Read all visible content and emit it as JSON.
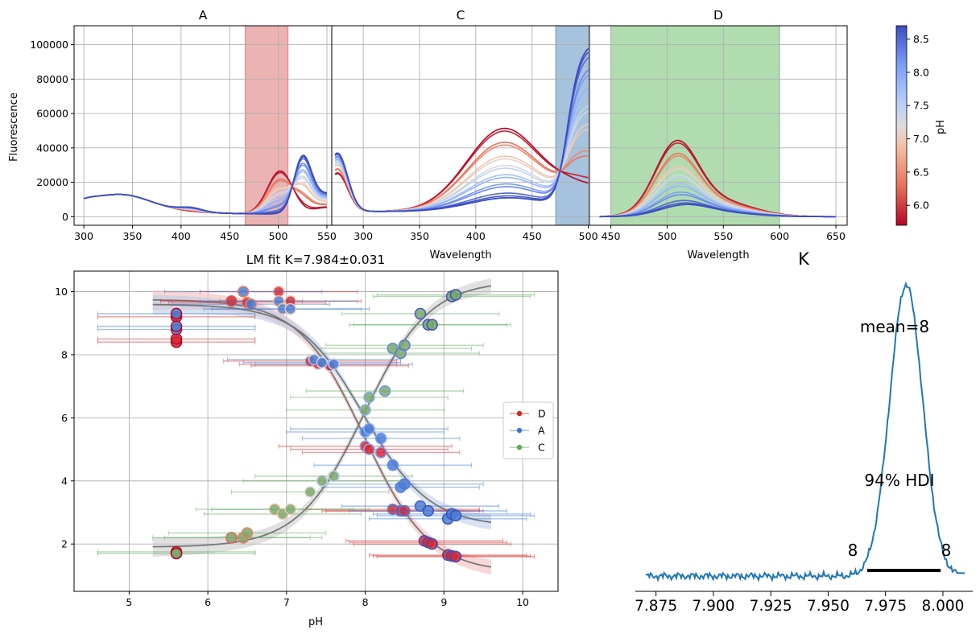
{
  "colors": {
    "band_A": "#e08080",
    "band_C": "#6f9cc7",
    "band_D": "#7cc47c",
    "series_D": "#d62728",
    "series_A": "#3a78cf",
    "series_C": "#5aa85a",
    "fit_line": "#777777",
    "kde_line": "#1f77b4",
    "hdi_line": "#000000"
  },
  "chart_data": [
    {
      "type": "line",
      "title": "A",
      "ylabel": "Fluorescence",
      "xlabel": "",
      "xlim": [
        290,
        555
      ],
      "ylim": [
        -5000,
        111000
      ],
      "xticks": [
        300,
        350,
        400,
        450,
        500,
        550
      ],
      "yticks": [
        0,
        20000,
        40000,
        60000,
        80000,
        100000
      ],
      "ytick_labels": [
        "0",
        "20000",
        "40000",
        "60000",
        "80000",
        "100000"
      ],
      "shaded_band": [
        466,
        510
      ],
      "series_pH": [
        5.7,
        6.3,
        6.9,
        7.3,
        7.7,
        8.1,
        8.5,
        8.7
      ]
    },
    {
      "type": "line",
      "title": "C",
      "xlabel": "Wavelength",
      "xlim": [
        272,
        501
      ],
      "ylim": [
        -5000,
        111000
      ],
      "xticks": [
        300,
        350,
        400,
        450,
        500
      ],
      "shaded_band": [
        471,
        500
      ],
      "series_pH": [
        5.7,
        6.3,
        6.9,
        7.3,
        7.7,
        8.1,
        8.5,
        8.7
      ]
    },
    {
      "type": "line",
      "title": "D",
      "xlabel": "Wavelength",
      "xlim": [
        431,
        660
      ],
      "ylim": [
        -5000,
        111000
      ],
      "xticks": [
        450,
        500,
        550,
        600,
        650
      ],
      "shaded_band": [
        450,
        600
      ],
      "series_pH": [
        5.7,
        6.3,
        6.9,
        7.3,
        7.7,
        8.1,
        8.5,
        8.7
      ]
    },
    {
      "type": "colorbar",
      "label": "pH",
      "range": [
        5.7,
        8.7
      ],
      "ticks": [
        6.0,
        6.5,
        7.0,
        7.5,
        8.0,
        8.5
      ],
      "tick_labels": [
        "6.0",
        "6.5",
        "7.0",
        "7.5",
        "8.0",
        "8.5"
      ]
    },
    {
      "type": "scatter",
      "title": "LM fit K=7.984±0.031",
      "xlabel": "pH",
      "xlim": [
        4.3,
        10.45
      ],
      "ylim": [
        0.5,
        10.65
      ],
      "xticks": [
        5,
        6,
        7,
        8,
        9,
        10
      ],
      "yticks": [
        2,
        4,
        6,
        8,
        10
      ],
      "legend_position": "center-right",
      "series": [
        {
          "name": "D",
          "x": [
            5.6,
            5.6,
            5.6,
            6.3,
            6.5,
            6.9,
            7.05,
            7.3,
            7.4,
            7.55,
            8.0,
            8.05,
            8.2,
            8.35,
            8.45,
            8.5,
            8.75,
            8.8,
            8.85,
            9.05,
            9.1,
            9.15
          ],
          "y": [
            8.4,
            8.5,
            9.2,
            9.7,
            9.65,
            10.0,
            9.7,
            7.8,
            7.7,
            7.65,
            5.1,
            5.0,
            4.9,
            3.1,
            3.05,
            3.05,
            2.1,
            2.05,
            2.0,
            1.65,
            1.62,
            1.6
          ],
          "xerr": [
            1.0,
            1.0,
            1.0,
            0.9,
            1.0,
            1.0,
            0.9,
            1.1,
            1.0,
            1.0,
            1.1,
            1.0,
            1.0,
            1.1,
            1.0,
            1.0,
            1.0,
            1.0,
            1.0,
            1.0,
            1.0,
            1.0
          ]
        },
        {
          "name": "A",
          "x": [
            5.6,
            5.6,
            5.6,
            6.45,
            6.55,
            6.9,
            6.95,
            7.05,
            7.35,
            7.45,
            7.6,
            8.0,
            8.05,
            8.2,
            8.35,
            8.45,
            8.5,
            8.7,
            8.8,
            9.05,
            9.1,
            9.15
          ],
          "y": [
            8.8,
            8.9,
            9.3,
            10.0,
            9.6,
            9.7,
            9.45,
            9.45,
            7.85,
            7.75,
            7.7,
            5.55,
            5.65,
            5.35,
            4.5,
            3.8,
            3.9,
            3.2,
            3.05,
            2.8,
            2.95,
            2.9
          ],
          "xerr": [
            1.0,
            1.0,
            1.0,
            1.0,
            1.0,
            1.0,
            1.0,
            1.0,
            1.1,
            1.0,
            1.0,
            1.0,
            1.0,
            1.0,
            1.0,
            1.0,
            1.0,
            1.0,
            1.0,
            1.0,
            1.0,
            1.0
          ]
        },
        {
          "name": "C",
          "x": [
            5.6,
            5.6,
            6.3,
            6.45,
            6.5,
            6.85,
            6.95,
            7.05,
            7.3,
            7.45,
            7.6,
            8.0,
            8.05,
            8.25,
            8.35,
            8.45,
            8.5,
            8.7,
            8.8,
            8.85,
            9.1,
            9.15
          ],
          "y": [
            1.75,
            1.7,
            2.2,
            2.2,
            2.35,
            3.1,
            2.95,
            3.1,
            3.65,
            4.0,
            4.15,
            6.25,
            6.65,
            6.85,
            8.2,
            8.05,
            8.3,
            9.3,
            8.95,
            8.95,
            9.85,
            9.9
          ],
          "xerr": [
            1.0,
            1.0,
            1.0,
            1.0,
            1.0,
            1.0,
            1.0,
            1.0,
            1.0,
            1.0,
            1.0,
            1.0,
            1.0,
            1.0,
            1.0,
            1.0,
            1.0,
            1.0,
            1.0,
            1.0,
            1.0,
            1.0
          ]
        }
      ],
      "fits": [
        {
          "name": "D",
          "x_range": [
            5.3,
            9.6
          ],
          "y_high": 9.75,
          "y_low": 1.1,
          "K": 7.984
        },
        {
          "name": "A",
          "x_range": [
            5.3,
            9.6
          ],
          "y_high": 9.6,
          "y_low": 2.55,
          "K": 7.984
        },
        {
          "name": "C",
          "x_range": [
            5.3,
            9.6
          ],
          "y_high": 1.9,
          "y_low": 10.35,
          "K": 7.984
        }
      ]
    },
    {
      "type": "line",
      "title": "K",
      "xlim": [
        7.866,
        8.013
      ],
      "xticks": [
        7.875,
        7.9,
        7.925,
        7.95,
        7.975,
        8.0
      ],
      "xtick_labels": [
        "7.875",
        "7.900",
        "7.925",
        "7.950",
        "7.975",
        "8.000"
      ],
      "mean_label": "mean=8",
      "hdi_label": "94% HDI",
      "hdi": [
        7.967,
        7.999
      ],
      "hdi_low_label": "8",
      "hdi_high_label": "8",
      "kde_peak": 7.984
    }
  ]
}
